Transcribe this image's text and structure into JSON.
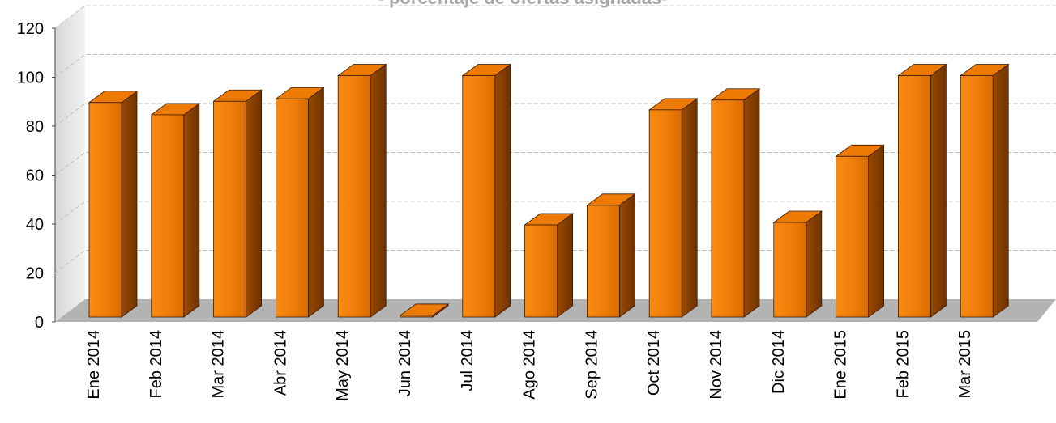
{
  "chart_data": {
    "type": "bar",
    "title": "- porcentaje de ofertas asignadas-",
    "xlabel": "",
    "ylabel": "",
    "ylim": [
      0,
      120
    ],
    "yticks": [
      0,
      20,
      40,
      60,
      80,
      100,
      120
    ],
    "grid": true,
    "style": "3d-column",
    "categories": [
      "Ene 2014",
      "Feb 2014",
      "Mar 2014",
      "Abr 2014",
      "May 2014",
      "Jun 2014",
      "Jul 2014",
      "Ago 2014",
      "Sep 2014",
      "Oct 2014",
      "Nov 2014",
      "Dic 2014",
      "Ene 2015",
      "Feb 2015",
      "Mar 2015"
    ],
    "values": [
      89,
      84,
      89.5,
      90.5,
      100,
      2,
      100,
      39,
      47,
      86,
      90,
      40,
      67,
      100,
      100
    ]
  },
  "colors": {
    "bar_front": "#f07f0c",
    "bar_top": "#ee7a06",
    "bar_side": "#8c4000",
    "floor": "#b3b3b3",
    "wall": "#e6e6e6",
    "grid": "#bdbdbd",
    "title": "#a9a9a9"
  }
}
